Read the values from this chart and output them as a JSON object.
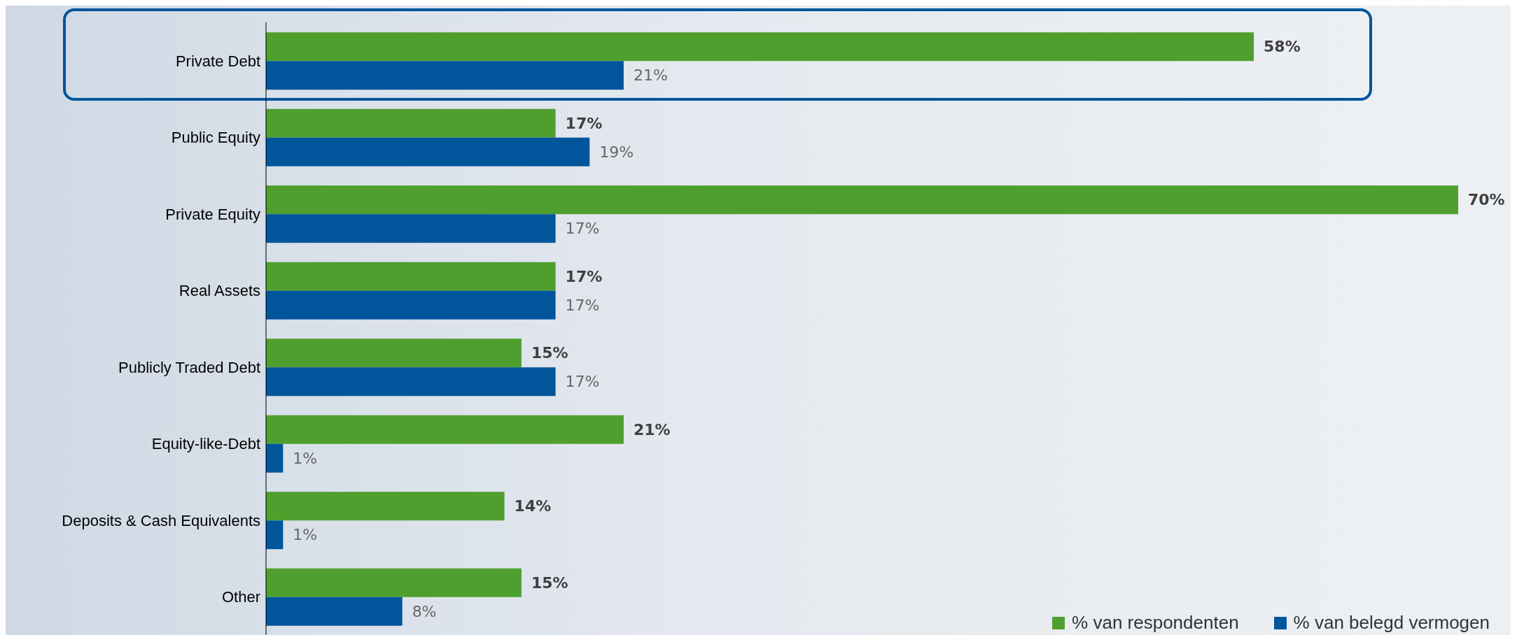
{
  "chart_data": {
    "type": "bar",
    "orientation": "horizontal",
    "categories": [
      "Private Debt",
      "Public Equity",
      "Private Equity",
      "Real Assets",
      "Publicly Traded Debt",
      "Equity-like-Debt",
      "Deposits & Cash Equivalents",
      "Other"
    ],
    "series": [
      {
        "name": "% van respondenten",
        "color": "#4f9f2f",
        "values": [
          58,
          17,
          70,
          17,
          15,
          21,
          14,
          15
        ],
        "value_labels": [
          "58%",
          "17%",
          "70%",
          "17%",
          "15%",
          "21%",
          "14%",
          "15%"
        ]
      },
      {
        "name": "% van belegd vermogen",
        "color": "#00559b",
        "values": [
          21,
          19,
          17,
          17,
          17,
          1,
          1,
          8
        ],
        "value_labels": [
          "21%",
          "19%",
          "17%",
          "17%",
          "17%",
          "1%",
          "1%",
          "8%"
        ]
      }
    ],
    "legend": "bottom right"
  }
}
